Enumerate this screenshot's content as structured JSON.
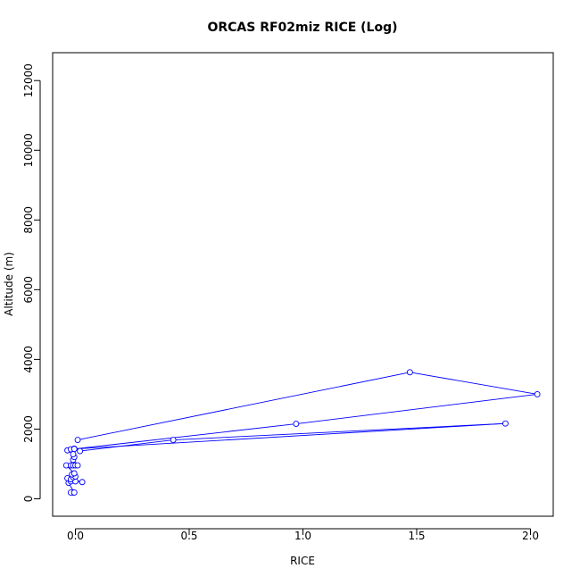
{
  "chart_data": {
    "type": "line",
    "title": "ORCAS RF02miz RICE (Log)",
    "xlabel": "RICE",
    "ylabel": "Altitude (m)",
    "xlim": [
      -0.1,
      2.1
    ],
    "ylim": [
      -500,
      12800
    ],
    "x_ticks": [
      "0.0",
      "0.5",
      "1.0",
      "1.5",
      "2.0"
    ],
    "y_ticks": [
      "0",
      "2000",
      "4000",
      "6000",
      "8000",
      "10000",
      "12000"
    ],
    "grid": false,
    "series": [
      {
        "color": "#0000ff",
        "marker": "open-circle",
        "points": [
          {
            "x": -0.01,
            "y": 180
          },
          {
            "x": -0.02,
            "y": 180
          },
          {
            "x": -0.005,
            "y": 180
          },
          {
            "x": -0.03,
            "y": 460
          },
          {
            "x": -0.02,
            "y": 500
          },
          {
            "x": 0.0,
            "y": 500
          },
          {
            "x": 0.03,
            "y": 480
          },
          {
            "x": -0.035,
            "y": 590
          },
          {
            "x": -0.02,
            "y": 560
          },
          {
            "x": -0.01,
            "y": 620
          },
          {
            "x": 0.0,
            "y": 640
          },
          {
            "x": -0.015,
            "y": 700
          },
          {
            "x": -0.005,
            "y": 730
          },
          {
            "x": -0.04,
            "y": 960
          },
          {
            "x": -0.02,
            "y": 960
          },
          {
            "x": -0.01,
            "y": 960
          },
          {
            "x": 0.0,
            "y": 960
          },
          {
            "x": 0.01,
            "y": 960
          },
          {
            "x": -0.01,
            "y": 1120
          },
          {
            "x": -0.005,
            "y": 1200
          },
          {
            "x": -0.01,
            "y": 1280
          },
          {
            "x": -0.035,
            "y": 1390
          },
          {
            "x": -0.02,
            "y": 1420
          },
          {
            "x": -0.005,
            "y": 1440
          },
          {
            "x": 0.02,
            "y": 1370
          },
          {
            "x": 0.43,
            "y": 1690
          },
          {
            "x": 1.89,
            "y": 2160
          },
          {
            "x": -0.005,
            "y": 1430
          },
          {
            "x": 0.97,
            "y": 2150
          },
          {
            "x": 2.03,
            "y": 3000
          },
          {
            "x": 1.47,
            "y": 3630
          },
          {
            "x": 0.01,
            "y": 1690
          }
        ]
      }
    ]
  }
}
